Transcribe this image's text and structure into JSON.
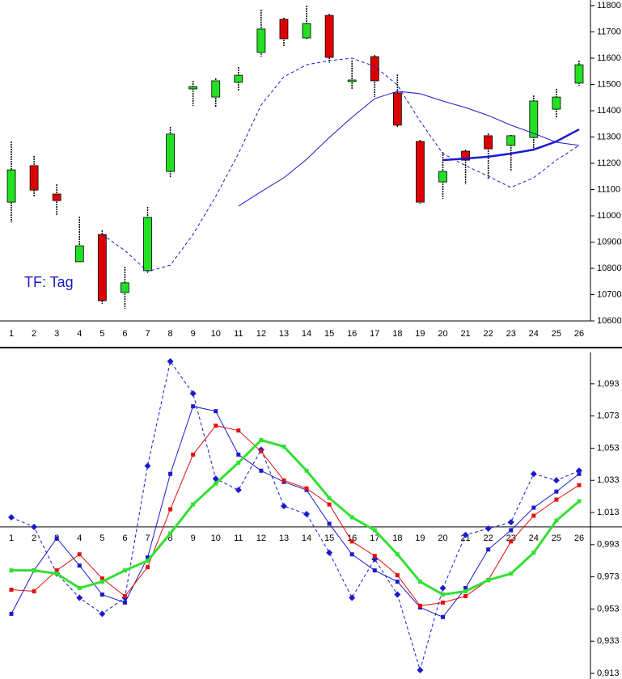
{
  "chart_data": [
    {
      "type": "candlestick",
      "categories": [
        "1",
        "2",
        "3",
        "4",
        "5",
        "6",
        "7",
        "8",
        "9",
        "10",
        "11",
        "12",
        "13",
        "14",
        "15",
        "16",
        "17",
        "18",
        "19",
        "20",
        "21",
        "22",
        "23",
        "24",
        "25",
        "26"
      ],
      "open": [
        11052,
        11191,
        11083,
        10825,
        10929,
        10708,
        10791,
        11169,
        11483,
        11452,
        11508,
        11622,
        11748,
        11677,
        11763,
        11511,
        11606,
        11468,
        11283,
        11129,
        11246,
        11305,
        11268,
        11298,
        11406,
        11505
      ],
      "high": [
        11283,
        11228,
        11120,
        10997,
        10945,
        10806,
        11034,
        11338,
        11514,
        11523,
        11566,
        11785,
        11754,
        11800,
        11769,
        11591,
        11612,
        11538,
        11289,
        11243,
        11252,
        11314,
        11308,
        11458,
        11483,
        11591
      ],
      "low": [
        10975,
        11074,
        11003,
        10825,
        10665,
        10646,
        10782,
        11145,
        11418,
        11412,
        11474,
        11606,
        11646,
        11674,
        11582,
        11483,
        11452,
        11335,
        11046,
        11065,
        11120,
        11138,
        11169,
        11246,
        11375,
        11495
      ],
      "close": [
        11175,
        11098,
        11058,
        10886,
        10677,
        10745,
        10994,
        11311,
        11492,
        11514,
        11535,
        11711,
        11674,
        11732,
        11603,
        11517,
        11514,
        11345,
        11052,
        11169,
        11212,
        11255,
        11305,
        11437,
        11452,
        11575
      ],
      "up_color": "#22e022",
      "down_color": "#dd0000",
      "series": [
        {
          "color": "#1a1acc",
          "dashed": true,
          "width": 1,
          "values": [
            null,
            null,
            null,
            null,
            10929,
            10868,
            10788,
            10812,
            10929,
            11074,
            11237,
            11422,
            11529,
            11575,
            11591,
            11600,
            11569,
            11498,
            11360,
            11237,
            11191,
            11151,
            11108,
            11145,
            11212,
            11268
          ]
        },
        {
          "color": "#1a1acc",
          "dashed": false,
          "width": 1,
          "values": [
            null,
            null,
            null,
            null,
            null,
            null,
            null,
            null,
            null,
            null,
            11037,
            11092,
            11145,
            11215,
            11298,
            11375,
            11446,
            11474,
            11465,
            11437,
            11412,
            11382,
            11345,
            11314,
            11280,
            11268
          ]
        },
        {
          "color": "#1a1acc",
          "dashed": false,
          "width": 2.5,
          "values": [
            null,
            null,
            null,
            null,
            null,
            null,
            null,
            null,
            null,
            null,
            null,
            null,
            null,
            null,
            null,
            null,
            null,
            null,
            null,
            11212,
            11218,
            11225,
            11237,
            11252,
            11283,
            11329
          ]
        }
      ],
      "ylim": [
        10600,
        11800
      ],
      "yticks": [
        10600,
        10700,
        10800,
        10900,
        11000,
        11100,
        11200,
        11300,
        11400,
        11500,
        11600,
        11700,
        11800
      ],
      "annotation": "TF: Tag"
    },
    {
      "type": "line",
      "categories": [
        "1",
        "2",
        "3",
        "4",
        "5",
        "6",
        "7",
        "8",
        "9",
        "10",
        "11",
        "12",
        "13",
        "14",
        "15",
        "16",
        "17",
        "18",
        "19",
        "20",
        "21",
        "22",
        "23",
        "24",
        "25",
        "26"
      ],
      "baseline": 1.004,
      "series": [
        {
          "color": "#1a1acc",
          "dashed": true,
          "width": 1,
          "marker": "diamond",
          "values": [
            1.01,
            1.004,
            0.975,
            0.96,
            0.95,
            0.96,
            1.042,
            1.107,
            1.087,
            1.034,
            1.027,
            1.052,
            1.017,
            1.012,
            0.988,
            0.96,
            0.984,
            0.962,
            0.915,
            0.966,
            0.999,
            1.003,
            1.007,
            1.037,
            1.033,
            1.039
          ]
        },
        {
          "color": "#1a1acc",
          "dashed": false,
          "width": 1,
          "marker": "square",
          "values": [
            0.95,
            0.977,
            0.997,
            0.98,
            0.962,
            0.957,
            0.985,
            1.037,
            1.079,
            1.076,
            1.049,
            1.039,
            1.032,
            1.027,
            1.006,
            0.987,
            0.977,
            0.97,
            0.954,
            0.948,
            0.966,
            0.99,
            1.002,
            1.016,
            1.026,
            1.037
          ]
        },
        {
          "color": "#e01010",
          "dashed": false,
          "width": 1,
          "marker": "square",
          "values": [
            0.965,
            0.964,
            0.977,
            0.987,
            0.972,
            0.961,
            0.979,
            1.015,
            1.049,
            1.067,
            1.064,
            1.051,
            1.033,
            1.028,
            1.018,
            0.995,
            0.986,
            0.974,
            0.955,
            0.957,
            0.961,
            0.971,
            0.995,
            1.011,
            1.021,
            1.03
          ]
        },
        {
          "color": "#33e033",
          "dashed": false,
          "width": 3,
          "marker": "square",
          "values": [
            0.977,
            0.977,
            0.975,
            0.966,
            0.97,
            0.977,
            0.983,
            1.0,
            1.018,
            1.031,
            1.044,
            1.058,
            1.054,
            1.039,
            1.022,
            1.01,
            1.002,
            0.987,
            0.97,
            0.962,
            0.964,
            0.971,
            0.975,
            0.988,
            1.008,
            1.02
          ]
        }
      ],
      "ylim": [
        0.913,
        1.108
      ],
      "yticks": [
        {
          "value": 0.913,
          "label": "0,913"
        },
        {
          "value": 0.933,
          "label": "0,933"
        },
        {
          "value": 0.953,
          "label": "0,953"
        },
        {
          "value": 0.973,
          "label": "0,973"
        },
        {
          "value": 0.993,
          "label": "0,993"
        },
        {
          "value": 1.013,
          "label": "1,013"
        },
        {
          "value": 1.033,
          "label": "1,033"
        },
        {
          "value": 1.053,
          "label": "1,053"
        },
        {
          "value": 1.073,
          "label": "1,073"
        },
        {
          "value": 1.093,
          "label": "1,093"
        }
      ]
    }
  ]
}
